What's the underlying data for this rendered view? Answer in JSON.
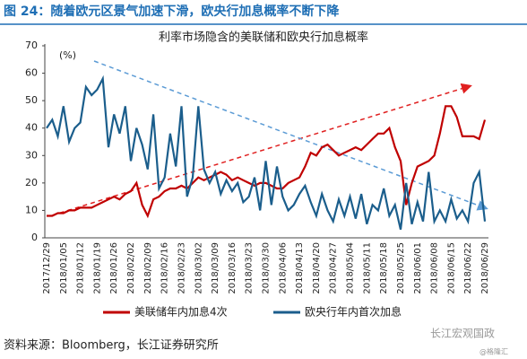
{
  "header": {
    "title": "图 24：随着欧元区景气加速下滑，欧央行加息概率不断下降"
  },
  "chart_data": {
    "type": "line",
    "title": "利率市场隐含的美联储和欧央行加息概率",
    "y_label": "(%)",
    "categories": [
      "2017/12/29",
      null,
      null,
      "2018/01/05",
      null,
      null,
      "2018/01/12",
      null,
      null,
      "2018/01/19",
      null,
      null,
      "2018/01/26",
      null,
      null,
      "2018/02/02",
      null,
      null,
      "2018/02/09",
      null,
      null,
      "2018/02/16",
      null,
      null,
      "2018/02/23",
      null,
      null,
      "2018/03/02",
      null,
      null,
      "2018/03/09",
      null,
      null,
      "2018/03/16",
      null,
      null,
      "2018/03/23",
      null,
      null,
      "2018/03/30",
      null,
      null,
      "2018/04/06",
      null,
      null,
      "2018/04/13",
      null,
      null,
      "2018/04/20",
      null,
      null,
      "2018/04/27",
      null,
      null,
      "2018/05/04",
      null,
      null,
      "2018/05/11",
      null,
      null,
      "2018/05/18",
      null,
      null,
      "2018/05/25",
      null,
      null,
      "2018/06/01",
      null,
      null,
      "2018/06/08",
      null,
      null,
      "2018/06/15",
      null,
      null,
      "2018/06/22",
      null,
      null,
      "2018/06/29"
    ],
    "series": [
      {
        "name": "美联储年内加息4次",
        "color": "#c00000",
        "values": [
          8,
          8,
          9,
          9,
          10,
          10,
          11,
          11,
          11,
          12,
          13,
          14,
          15,
          14,
          16,
          17,
          20,
          12,
          8,
          14,
          15,
          17,
          18,
          18,
          19,
          18,
          20,
          22,
          21,
          22,
          23,
          24,
          23,
          21,
          22,
          21,
          20,
          19,
          20,
          20,
          19,
          18,
          18,
          20,
          21,
          22,
          26,
          31,
          30,
          33,
          34,
          32,
          30,
          31,
          32,
          33,
          32,
          34,
          36,
          38,
          38,
          40,
          33,
          28,
          12,
          20,
          26,
          27,
          28,
          30,
          38,
          48,
          48,
          44,
          37,
          37,
          37,
          36,
          43
        ]
      },
      {
        "name": "欧央行年内首次加息",
        "color": "#1b5e8c",
        "values": [
          40,
          43,
          37,
          48,
          35,
          40,
          42,
          55,
          52,
          54,
          58,
          33,
          45,
          38,
          48,
          28,
          40,
          34,
          25,
          45,
          18,
          22,
          38,
          26,
          48,
          15,
          22,
          48,
          25,
          20,
          24,
          16,
          21,
          17,
          20,
          13,
          15,
          22,
          10,
          28,
          12,
          26,
          15,
          10,
          12,
          16,
          19,
          13,
          8,
          16,
          10,
          6,
          14,
          8,
          15,
          7,
          16,
          5,
          12,
          10,
          18,
          8,
          12,
          3,
          20,
          5,
          13,
          6,
          24,
          6,
          10,
          6,
          14,
          7,
          10,
          6,
          20,
          24,
          6
        ]
      }
    ],
    "ylim": [
      0,
      70
    ],
    "yticks": [
      0,
      10,
      20,
      30,
      40,
      50,
      60,
      70
    ],
    "grid": false,
    "legend": "bottom"
  },
  "footer": {
    "source": "资料来源：Bloomberg，长江证券研究所",
    "watermark": "长江宏观国政",
    "credit": "@格隆汇"
  }
}
